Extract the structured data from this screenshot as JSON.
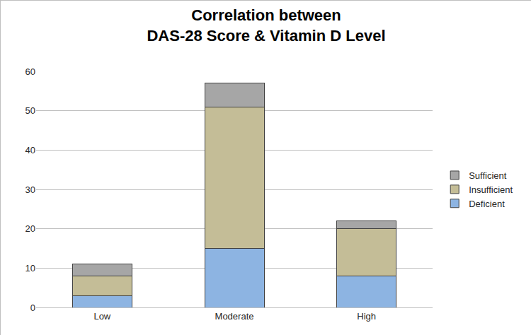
{
  "chart_data": {
    "type": "bar",
    "title": "Correlation between\nDAS-28 Score & Vitamin D Level",
    "categories": [
      "Low",
      "Moderate",
      "High"
    ],
    "series": [
      {
        "name": "Deficient",
        "color": "#8db4e2",
        "values": [
          3,
          15,
          8
        ]
      },
      {
        "name": "Insufficient",
        "color": "#c4bd97",
        "values": [
          5,
          36,
          12
        ]
      },
      {
        "name": "Sufficient",
        "color": "#a6a6a6",
        "values": [
          3,
          6,
          2
        ]
      }
    ],
    "stacked": true,
    "ylim": [
      0,
      60
    ],
    "yticks": [
      0,
      10,
      20,
      30,
      40,
      50,
      60
    ],
    "grid": true,
    "legend": "right"
  }
}
